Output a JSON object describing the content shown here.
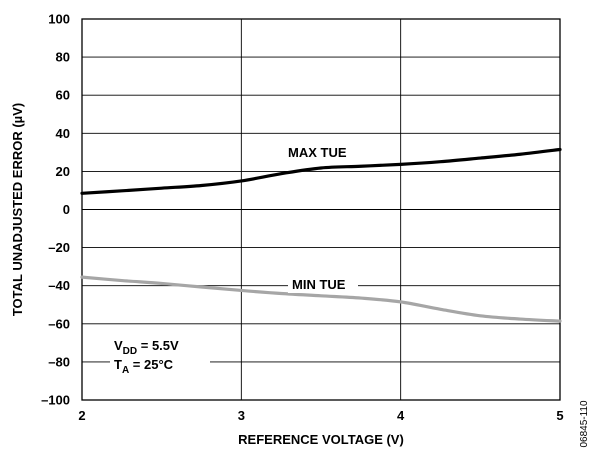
{
  "chart_data": {
    "type": "line",
    "xlabel": "REFERENCE VOLTAGE (V)",
    "ylabel": "TOTAL UNADJUSTED ERROR (µV)",
    "xlim": [
      2,
      5
    ],
    "ylim": [
      -100,
      100
    ],
    "x_ticks": [
      2,
      3,
      4,
      5
    ],
    "y_ticks": [
      -100,
      -80,
      -60,
      -40,
      -20,
      0,
      20,
      40,
      60,
      80,
      100
    ],
    "grid": true,
    "legend": "none",
    "series": [
      {
        "name": "MAX TUE",
        "color": "#000000",
        "x": [
          2.0,
          2.25,
          2.5,
          2.75,
          3.0,
          3.25,
          3.5,
          3.75,
          4.0,
          4.25,
          4.5,
          4.75,
          5.0
        ],
        "y": [
          8.5,
          9.8,
          11.2,
          12.6,
          15.0,
          18.8,
          21.8,
          22.7,
          23.7,
          25.1,
          27.0,
          29.0,
          31.5
        ]
      },
      {
        "name": "MIN TUE",
        "color": "#a6a6a6",
        "x": [
          2.0,
          2.25,
          2.5,
          2.75,
          3.0,
          3.25,
          3.5,
          3.75,
          4.0,
          4.25,
          4.5,
          4.75,
          5.0
        ],
        "y": [
          -35.5,
          -37.3,
          -38.8,
          -40.7,
          -42.5,
          -44.1,
          -45.3,
          -46.5,
          -48.5,
          -52.4,
          -55.8,
          -57.5,
          -58.6
        ]
      }
    ],
    "annotations": {
      "vdd_main": "V",
      "vdd_sub": "DD",
      "vdd_value": " = 5.5V",
      "ta_main": "T",
      "ta_sub": "A",
      "ta_value": " = 25°C"
    },
    "figure_id": "06845-110"
  }
}
